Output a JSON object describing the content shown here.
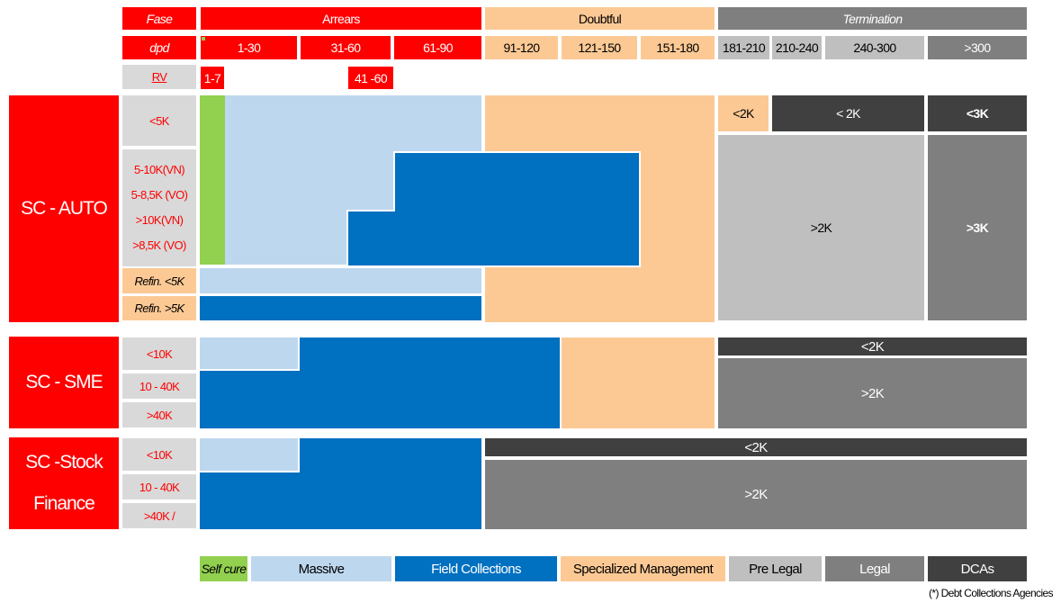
{
  "header": {
    "fase_label": "Fase",
    "arrears": "Arrears",
    "doubtful": "Doubtful",
    "termination": "Termination",
    "dpd_label": "dpd",
    "dpd_ranges": [
      "1-30",
      "31-60",
      "61-90",
      "91-120",
      "121-150",
      "151-180",
      "181-210",
      "210-240",
      "240-300",
      ">300"
    ],
    "rv_label": "RV",
    "rv_ranges": [
      "1-7",
      "41 -60"
    ]
  },
  "sections": [
    {
      "name": "SC - AUTO",
      "segments": [
        "<5K",
        "5-10K(VN)",
        "5-8,5K (VO)",
        ">10K(VN)",
        ">8,5K (VO)",
        "Refin. <5K",
        "Refin. >5K"
      ],
      "labels": {
        "auto_lt2k_a": "<2K",
        "auto_lt2k_b": "< 2K",
        "auto_lt3k": "<3K",
        "auto_gt2k": ">2K",
        "auto_gt3k": ">3K"
      }
    },
    {
      "name": "SC - SME",
      "segments": [
        "<10K",
        "10 - 40K",
        ">40K"
      ],
      "labels": {
        "lt2k": "<2K",
        "gt2k": ">2K"
      }
    },
    {
      "name_line1": "SC -Stock",
      "name_line2": "Finance",
      "segments": [
        "<10K",
        "10 - 40K",
        ">40K /"
      ],
      "labels": {
        "lt2k": "<2K",
        "gt2k": ">2K"
      }
    }
  ],
  "legend": [
    {
      "label": "Self cure",
      "color": "#92d050"
    },
    {
      "label": "Massive",
      "color": "#bdd7ee"
    },
    {
      "label": "Field Collections",
      "color": "#0070c0"
    },
    {
      "label": "Specialized Management",
      "color": "#fcc995"
    },
    {
      "label": "Pre Legal",
      "color": "#bfbfbf"
    },
    {
      "label": "Legal",
      "color": "#7f7f7f"
    },
    {
      "label": "DCAs",
      "color": "#404040"
    }
  ],
  "footnote": "(*) Debt Collections Agencies",
  "colors": {
    "red": "#ff0000",
    "self_cure": "#92d050",
    "massive": "#bdd7ee",
    "field": "#0070c0",
    "specialized": "#fcc995",
    "pre_legal": "#bfbfbf",
    "legal": "#7f7f7f",
    "dcas": "#404040",
    "segment_bg": "#d9d9d9"
  }
}
